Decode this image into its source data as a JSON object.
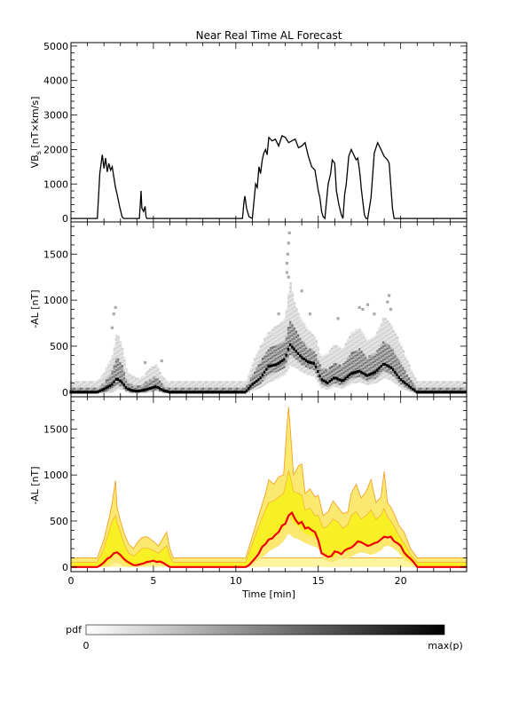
{
  "figure": {
    "title": "Near Real Time AL Forecast"
  },
  "colorbar": {
    "label": "pdf",
    "min_label": "0",
    "max_label": "max(p)"
  },
  "chart_data": [
    {
      "type": "line",
      "panel": "top",
      "title": "Near Real Time AL Forecast",
      "xlabel": "",
      "ylabel": "VB_s [nT×km/s]",
      "xlim": [
        0,
        24
      ],
      "ylim": [
        -100,
        5100
      ],
      "x_ticks": [
        0,
        5,
        10,
        15,
        20
      ],
      "y_ticks": [
        0,
        1000,
        2000,
        3000,
        4000,
        5000
      ],
      "series": [
        {
          "color": "#000000",
          "x": [
            0,
            1.6,
            1.75,
            1.9,
            2.0,
            2.1,
            2.2,
            2.3,
            2.4,
            2.5,
            2.6,
            2.7,
            2.8,
            2.95,
            3.1,
            3.2,
            3.5,
            4.15,
            4.2,
            4.25,
            4.3,
            4.4,
            4.5,
            4.55,
            4.6,
            4.75,
            5.0,
            10.4,
            10.5,
            10.55,
            10.65,
            10.8,
            11.0,
            11.1,
            11.2,
            11.3,
            11.4,
            11.5,
            11.6,
            11.7,
            11.8,
            11.9,
            12.0,
            12.2,
            12.4,
            12.6,
            12.8,
            13.0,
            13.2,
            13.4,
            13.6,
            13.8,
            14.0,
            14.2,
            14.4,
            14.6,
            14.8,
            15.0,
            15.1,
            15.2,
            15.3,
            15.4,
            15.6,
            15.75,
            15.85,
            16.0,
            16.1,
            16.25,
            16.4,
            16.5,
            16.6,
            16.7,
            16.85,
            17.0,
            17.2,
            17.3,
            17.4,
            17.5,
            17.55,
            17.6,
            17.7,
            17.8,
            17.9,
            18.0,
            18.2,
            18.4,
            18.6,
            18.8,
            19.0,
            19.2,
            19.3,
            19.5,
            19.6,
            19.65,
            19.7,
            19.8,
            24
          ],
          "y": [
            0,
            0,
            1300,
            1850,
            1450,
            1750,
            1350,
            1600,
            1400,
            1500,
            1200,
            900,
            700,
            350,
            50,
            0,
            0,
            0,
            400,
            800,
            300,
            200,
            350,
            50,
            0,
            0,
            0,
            0,
            500,
            650,
            300,
            50,
            0,
            500,
            1000,
            900,
            1500,
            1300,
            1700,
            1900,
            2000,
            1850,
            2350,
            2250,
            2300,
            2100,
            2400,
            2350,
            2200,
            2250,
            2300,
            2050,
            2100,
            2200,
            1800,
            1500,
            1400,
            800,
            600,
            200,
            50,
            0,
            1000,
            1300,
            1700,
            1600,
            800,
            400,
            100,
            0,
            700,
            1000,
            1800,
            2000,
            1800,
            1700,
            1750,
            1400,
            1200,
            900,
            500,
            100,
            0,
            0,
            600,
            1900,
            2200,
            2000,
            1800,
            1700,
            1600,
            300,
            0,
            0,
            0,
            0,
            0
          ]
        }
      ]
    },
    {
      "type": "heatmap",
      "panel": "middle",
      "xlabel": "",
      "ylabel": "-AL [nT]",
      "xlim": [
        0,
        24
      ],
      "ylim": [
        -50,
        1850
      ],
      "x_ticks": [
        0,
        5,
        10,
        15,
        20
      ],
      "y_ticks": [
        0,
        500,
        1000,
        1500
      ],
      "description_source": "probability density of forecast -AL, grayscale 0 to max(p)",
      "median": {
        "x": [
          0,
          1.6,
          2.0,
          2.5,
          2.8,
          3.1,
          3.4,
          3.7,
          4.0,
          4.4,
          4.8,
          5.2,
          5.6,
          6.0,
          10.6,
          11.0,
          11.5,
          12.0,
          12.5,
          13.0,
          13.3,
          13.6,
          14.0,
          14.4,
          14.8,
          15.2,
          15.6,
          16.0,
          16.5,
          17.0,
          17.5,
          18.0,
          18.5,
          19.0,
          19.5,
          20.0,
          20.5,
          21.0,
          24
        ],
        "y": [
          0,
          0,
          30,
          80,
          150,
          110,
          40,
          20,
          10,
          20,
          40,
          60,
          20,
          0,
          0,
          80,
          150,
          280,
          300,
          360,
          520,
          460,
          380,
          330,
          310,
          140,
          100,
          160,
          120,
          200,
          230,
          180,
          220,
          310,
          260,
          140,
          70,
          0,
          0
        ]
      },
      "spread_bands": [
        {
          "level": 0.15,
          "lower": [
            0,
            0,
            0,
            10,
            40,
            40,
            10,
            0,
            0,
            0,
            10,
            20,
            0,
            0,
            0,
            20,
            60,
            120,
            150,
            200,
            300,
            280,
            230,
            200,
            180,
            60,
            40,
            70,
            50,
            100,
            120,
            90,
            110,
            170,
            130,
            60,
            20,
            0,
            0
          ],
          "upper": [
            110,
            110,
            200,
            380,
            650,
            500,
            220,
            180,
            150,
            170,
            250,
            300,
            150,
            110,
            110,
            300,
            500,
            650,
            720,
            800,
            1200,
            950,
            780,
            680,
            600,
            380,
            420,
            520,
            460,
            640,
            700,
            560,
            620,
            820,
            700,
            520,
            300,
            110,
            110
          ]
        },
        {
          "level": 0.45,
          "lower": [
            0,
            0,
            10,
            40,
            90,
            70,
            20,
            5,
            5,
            10,
            20,
            35,
            10,
            0,
            0,
            50,
            100,
            200,
            230,
            280,
            420,
            380,
            310,
            270,
            250,
            100,
            70,
            110,
            80,
            150,
            180,
            130,
            160,
            240,
            200,
            100,
            40,
            0,
            0
          ],
          "upper": [
            40,
            40,
            90,
            220,
            380,
            300,
            120,
            80,
            60,
            80,
            140,
            170,
            70,
            40,
            40,
            180,
            330,
            470,
            500,
            560,
            780,
            680,
            560,
            480,
            440,
            260,
            250,
            320,
            290,
            420,
            470,
            380,
            420,
            560,
            480,
            330,
            160,
            40,
            40
          ]
        }
      ],
      "outliers": [
        {
          "x": 2.6,
          "y": 850
        },
        {
          "x": 2.7,
          "y": 920
        },
        {
          "x": 2.5,
          "y": 700
        },
        {
          "x": 4.5,
          "y": 320
        },
        {
          "x": 5.5,
          "y": 340
        },
        {
          "x": 13.1,
          "y": 1400
        },
        {
          "x": 13.15,
          "y": 1500
        },
        {
          "x": 13.2,
          "y": 1620
        },
        {
          "x": 13.25,
          "y": 1730
        },
        {
          "x": 13.1,
          "y": 1300
        },
        {
          "x": 13.2,
          "y": 1250
        },
        {
          "x": 14.0,
          "y": 1100
        },
        {
          "x": 14.5,
          "y": 850
        },
        {
          "x": 12.6,
          "y": 850
        },
        {
          "x": 16.2,
          "y": 800
        },
        {
          "x": 17.5,
          "y": 920
        },
        {
          "x": 17.7,
          "y": 900
        },
        {
          "x": 18.0,
          "y": 950
        },
        {
          "x": 18.4,
          "y": 850
        },
        {
          "x": 19.3,
          "y": 1050
        },
        {
          "x": 19.2,
          "y": 980
        },
        {
          "x": 19.4,
          "y": 900
        }
      ]
    },
    {
      "type": "area",
      "panel": "bottom",
      "xlabel": "Time [min]",
      "ylabel": "-AL [nT]",
      "xlim": [
        0,
        24
      ],
      "ylim": [
        -50,
        1850
      ],
      "x_ticks": [
        0,
        5,
        10,
        15,
        20
      ],
      "y_ticks": [
        0,
        500,
        1000,
        1500
      ],
      "floor_band": {
        "lower": 0,
        "upper": 100,
        "color": "#fff4a0"
      },
      "outer_band": {
        "color": "#fbe870",
        "edge_color": "#f4a22a",
        "x": [
          0,
          1.6,
          2.0,
          2.3,
          2.5,
          2.7,
          2.8,
          3.0,
          3.2,
          3.5,
          3.8,
          4.0,
          4.3,
          4.6,
          5.0,
          5.3,
          5.6,
          5.8,
          6.0,
          6.2,
          10.6,
          11.0,
          11.4,
          11.8,
          12.0,
          12.3,
          12.6,
          12.9,
          13.1,
          13.2,
          13.3,
          13.5,
          13.8,
          14.0,
          14.2,
          14.5,
          14.8,
          15.0,
          15.3,
          15.6,
          15.9,
          16.2,
          16.5,
          16.8,
          17.0,
          17.3,
          17.6,
          17.9,
          18.2,
          18.5,
          18.8,
          19.0,
          19.2,
          19.4,
          19.6,
          19.9,
          20.2,
          20.6,
          21.0,
          24
        ],
        "lower": [
          0,
          0,
          0,
          10,
          30,
          50,
          45,
          30,
          10,
          0,
          0,
          0,
          5,
          15,
          25,
          20,
          10,
          5,
          0,
          0,
          0,
          30,
          80,
          130,
          170,
          200,
          230,
          280,
          340,
          360,
          350,
          320,
          300,
          280,
          260,
          240,
          220,
          200,
          90,
          60,
          50,
          80,
          100,
          90,
          110,
          140,
          160,
          150,
          130,
          150,
          180,
          220,
          230,
          220,
          200,
          150,
          80,
          40,
          0,
          0
        ],
        "upper": [
          100,
          100,
          300,
          520,
          700,
          940,
          650,
          500,
          380,
          250,
          200,
          260,
          320,
          330,
          280,
          230,
          320,
          380,
          200,
          100,
          100,
          330,
          570,
          800,
          950,
          900,
          980,
          1000,
          1520,
          1740,
          1500,
          1000,
          1100,
          1120,
          800,
          850,
          760,
          780,
          560,
          600,
          720,
          650,
          580,
          600,
          800,
          900,
          750,
          820,
          950,
          700,
          760,
          1040,
          700,
          650,
          580,
          450,
          380,
          200,
          100,
          100
        ]
      },
      "inner_band": {
        "color": "#f7f025",
        "x": [
          0,
          1.6,
          2.0,
          2.3,
          2.5,
          2.7,
          2.8,
          3.0,
          3.2,
          3.5,
          3.8,
          4.0,
          4.3,
          4.6,
          5.0,
          5.3,
          5.6,
          5.8,
          6.0,
          6.2,
          10.6,
          11.0,
          11.4,
          11.8,
          12.0,
          12.3,
          12.6,
          12.9,
          13.1,
          13.2,
          13.3,
          13.5,
          13.8,
          14.0,
          14.2,
          14.5,
          14.8,
          15.0,
          15.3,
          15.6,
          15.9,
          16.2,
          16.5,
          16.8,
          17.0,
          17.3,
          17.6,
          17.9,
          18.2,
          18.5,
          18.8,
          19.0,
          19.2,
          19.4,
          19.6,
          19.9,
          20.2,
          20.6,
          21.0,
          24
        ],
        "lower": [
          0,
          0,
          20,
          60,
          100,
          140,
          130,
          100,
          60,
          20,
          10,
          10,
          30,
          50,
          70,
          60,
          40,
          20,
          0,
          0,
          0,
          80,
          180,
          250,
          300,
          330,
          380,
          420,
          500,
          560,
          540,
          480,
          440,
          400,
          360,
          340,
          320,
          300,
          150,
          110,
          100,
          150,
          180,
          160,
          200,
          240,
          260,
          240,
          230,
          250,
          280,
          330,
          340,
          320,
          300,
          230,
          120,
          60,
          0,
          0
        ],
        "upper": [
          50,
          50,
          200,
          380,
          500,
          560,
          480,
          380,
          260,
          150,
          120,
          150,
          200,
          210,
          180,
          150,
          200,
          230,
          120,
          50,
          50,
          250,
          450,
          620,
          700,
          720,
          760,
          800,
          950,
          1050,
          980,
          820,
          800,
          780,
          620,
          640,
          560,
          560,
          420,
          450,
          520,
          490,
          420,
          460,
          560,
          600,
          520,
          560,
          620,
          520,
          560,
          640,
          540,
          500,
          440,
          340,
          260,
          130,
          50,
          50
        ]
      },
      "median": {
        "color": "#ee0000",
        "x": [
          0,
          1.6,
          1.8,
          2.0,
          2.2,
          2.4,
          2.6,
          2.8,
          3.0,
          3.2,
          3.4,
          3.6,
          3.8,
          4.0,
          4.2,
          4.4,
          4.6,
          4.8,
          5.0,
          5.2,
          5.4,
          5.6,
          5.8,
          6.0,
          10.6,
          10.8,
          11.0,
          11.2,
          11.4,
          11.6,
          11.8,
          12.0,
          12.2,
          12.4,
          12.6,
          12.8,
          13.0,
          13.2,
          13.4,
          13.6,
          13.8,
          14.0,
          14.2,
          14.4,
          14.6,
          14.8,
          15.0,
          15.2,
          15.4,
          15.6,
          15.8,
          16.0,
          16.2,
          16.4,
          16.6,
          16.8,
          17.0,
          17.2,
          17.4,
          17.6,
          17.8,
          18.0,
          18.2,
          18.4,
          18.6,
          18.8,
          19.0,
          19.2,
          19.4,
          19.6,
          19.8,
          20.0,
          20.2,
          20.4,
          20.6,
          20.8,
          21.0,
          24
        ],
        "y": [
          0,
          0,
          20,
          50,
          90,
          110,
          150,
          160,
          130,
          90,
          60,
          40,
          20,
          20,
          30,
          40,
          55,
          60,
          70,
          55,
          60,
          45,
          20,
          0,
          0,
          20,
          60,
          100,
          150,
          220,
          250,
          300,
          310,
          350,
          380,
          450,
          470,
          560,
          590,
          520,
          470,
          490,
          420,
          430,
          400,
          380,
          290,
          150,
          130,
          110,
          120,
          170,
          160,
          140,
          180,
          200,
          210,
          240,
          280,
          270,
          250,
          230,
          240,
          260,
          270,
          300,
          330,
          320,
          330,
          280,
          260,
          230,
          160,
          120,
          90,
          50,
          0,
          0
        ]
      }
    }
  ]
}
